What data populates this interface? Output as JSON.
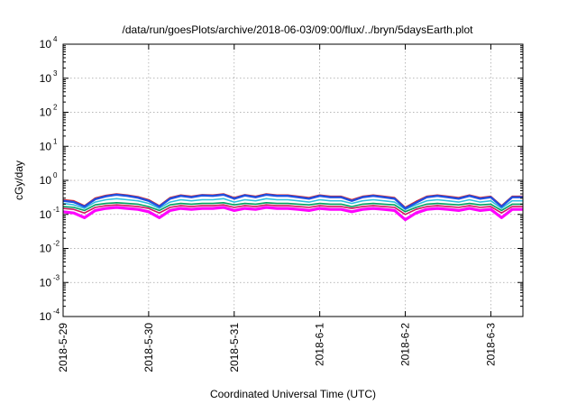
{
  "chart_data": {
    "type": "line",
    "title": "/data/run/goesPlots/archive/2018-06-03/09:00/flux/../bryn/5daysEarth.plot",
    "xlabel": "Coordinated Universal Time (UTC)",
    "ylabel": "cGy/day",
    "yscale": "log",
    "ylim": [
      0.0001,
      10000
    ],
    "y_ticks": [
      {
        "value": 0.0001,
        "base": "10",
        "exp": "-4"
      },
      {
        "value": 0.001,
        "base": "10",
        "exp": "-3"
      },
      {
        "value": 0.01,
        "base": "10",
        "exp": "-2"
      },
      {
        "value": 0.1,
        "base": "10",
        "exp": "-1"
      },
      {
        "value": 1,
        "base": "10",
        "exp": "0"
      },
      {
        "value": 10,
        "base": "10",
        "exp": "1"
      },
      {
        "value": 100,
        "base": "10",
        "exp": "2"
      },
      {
        "value": 1000,
        "base": "10",
        "exp": "3"
      },
      {
        "value": 10000,
        "base": "10",
        "exp": "4"
      }
    ],
    "xlim": [
      "2018-05-29T00:00",
      "2018-06-03T09:00"
    ],
    "x_ticks": [
      {
        "value": "2018-05-29T00:00",
        "label": "2018-5-29"
      },
      {
        "value": "2018-05-30T00:00",
        "label": "2018-5-30"
      },
      {
        "value": "2018-05-31T00:00",
        "label": "2018-5-31"
      },
      {
        "value": "2018-06-01T00:00",
        "label": "2018-6-1"
      },
      {
        "value": "2018-06-02T00:00",
        "label": "2018-6-2"
      },
      {
        "value": "2018-06-03T00:00",
        "label": "2018-6-3"
      }
    ],
    "grid": true,
    "x": [
      "2018-05-29T00:00",
      "2018-05-29T03:00",
      "2018-05-29T06:00",
      "2018-05-29T09:00",
      "2018-05-29T12:00",
      "2018-05-29T15:00",
      "2018-05-29T18:00",
      "2018-05-29T21:00",
      "2018-05-30T00:00",
      "2018-05-30T03:00",
      "2018-05-30T06:00",
      "2018-05-30T09:00",
      "2018-05-30T12:00",
      "2018-05-30T15:00",
      "2018-05-30T18:00",
      "2018-05-30T21:00",
      "2018-05-31T00:00",
      "2018-05-31T03:00",
      "2018-05-31T06:00",
      "2018-05-31T09:00",
      "2018-05-31T12:00",
      "2018-05-31T15:00",
      "2018-05-31T18:00",
      "2018-05-31T21:00",
      "2018-06-01T00:00",
      "2018-06-01T03:00",
      "2018-06-01T06:00",
      "2018-06-01T09:00",
      "2018-06-01T12:00",
      "2018-06-01T15:00",
      "2018-06-01T18:00",
      "2018-06-01T21:00",
      "2018-06-02T00:00",
      "2018-06-02T03:00",
      "2018-06-02T06:00",
      "2018-06-02T09:00",
      "2018-06-02T12:00",
      "2018-06-02T15:00",
      "2018-06-02T18:00",
      "2018-06-02T21:00",
      "2018-06-03T00:00",
      "2018-06-03T03:00",
      "2018-06-03T06:00",
      "2018-06-03T09:00"
    ],
    "series": [
      {
        "color": "#ff00ff",
        "values": [
          0.12,
          0.11,
          0.08,
          0.13,
          0.15,
          0.16,
          0.15,
          0.14,
          0.12,
          0.08,
          0.13,
          0.15,
          0.14,
          0.15,
          0.15,
          0.16,
          0.13,
          0.15,
          0.14,
          0.16,
          0.15,
          0.15,
          0.14,
          0.13,
          0.15,
          0.14,
          0.14,
          0.12,
          0.14,
          0.15,
          0.14,
          0.13,
          0.07,
          0.11,
          0.14,
          0.15,
          0.14,
          0.13,
          0.15,
          0.13,
          0.14,
          0.08,
          0.14,
          0.14
        ]
      },
      {
        "color": "#d01860",
        "values": [
          0.15,
          0.14,
          0.11,
          0.16,
          0.18,
          0.19,
          0.18,
          0.17,
          0.15,
          0.11,
          0.16,
          0.18,
          0.17,
          0.18,
          0.18,
          0.19,
          0.16,
          0.18,
          0.17,
          0.19,
          0.18,
          0.18,
          0.17,
          0.16,
          0.18,
          0.17,
          0.17,
          0.15,
          0.17,
          0.18,
          0.17,
          0.16,
          0.1,
          0.14,
          0.17,
          0.18,
          0.17,
          0.16,
          0.18,
          0.16,
          0.17,
          0.11,
          0.17,
          0.17
        ]
      },
      {
        "color": "#00a060",
        "values": [
          0.17,
          0.16,
          0.13,
          0.19,
          0.21,
          0.22,
          0.21,
          0.2,
          0.17,
          0.13,
          0.19,
          0.21,
          0.2,
          0.21,
          0.21,
          0.22,
          0.19,
          0.21,
          0.2,
          0.22,
          0.21,
          0.21,
          0.2,
          0.19,
          0.21,
          0.2,
          0.2,
          0.17,
          0.2,
          0.21,
          0.2,
          0.19,
          0.12,
          0.16,
          0.2,
          0.21,
          0.2,
          0.19,
          0.21,
          0.19,
          0.2,
          0.13,
          0.2,
          0.2
        ]
      },
      {
        "color": "#30c0e0",
        "values": [
          0.21,
          0.19,
          0.15,
          0.23,
          0.27,
          0.29,
          0.27,
          0.25,
          0.21,
          0.15,
          0.23,
          0.27,
          0.25,
          0.27,
          0.27,
          0.29,
          0.23,
          0.27,
          0.25,
          0.29,
          0.27,
          0.27,
          0.25,
          0.23,
          0.27,
          0.25,
          0.25,
          0.21,
          0.25,
          0.27,
          0.25,
          0.23,
          0.14,
          0.19,
          0.25,
          0.27,
          0.25,
          0.23,
          0.27,
          0.23,
          0.25,
          0.15,
          0.25,
          0.25
        ]
      },
      {
        "color": "#e02020",
        "values": [
          0.27,
          0.25,
          0.18,
          0.3,
          0.36,
          0.4,
          0.37,
          0.33,
          0.27,
          0.18,
          0.31,
          0.37,
          0.34,
          0.38,
          0.37,
          0.4,
          0.31,
          0.38,
          0.34,
          0.4,
          0.37,
          0.37,
          0.34,
          0.31,
          0.37,
          0.34,
          0.34,
          0.27,
          0.34,
          0.37,
          0.34,
          0.31,
          0.16,
          0.24,
          0.34,
          0.37,
          0.34,
          0.31,
          0.37,
          0.31,
          0.34,
          0.18,
          0.34,
          0.34
        ]
      },
      {
        "color": "#2050e0",
        "values": [
          0.25,
          0.23,
          0.17,
          0.28,
          0.34,
          0.38,
          0.35,
          0.31,
          0.25,
          0.17,
          0.29,
          0.35,
          0.32,
          0.36,
          0.35,
          0.38,
          0.29,
          0.36,
          0.32,
          0.38,
          0.35,
          0.35,
          0.32,
          0.29,
          0.35,
          0.32,
          0.32,
          0.25,
          0.32,
          0.35,
          0.32,
          0.29,
          0.15,
          0.22,
          0.32,
          0.35,
          0.32,
          0.29,
          0.35,
          0.29,
          0.32,
          0.17,
          0.32,
          0.32
        ]
      }
    ]
  }
}
